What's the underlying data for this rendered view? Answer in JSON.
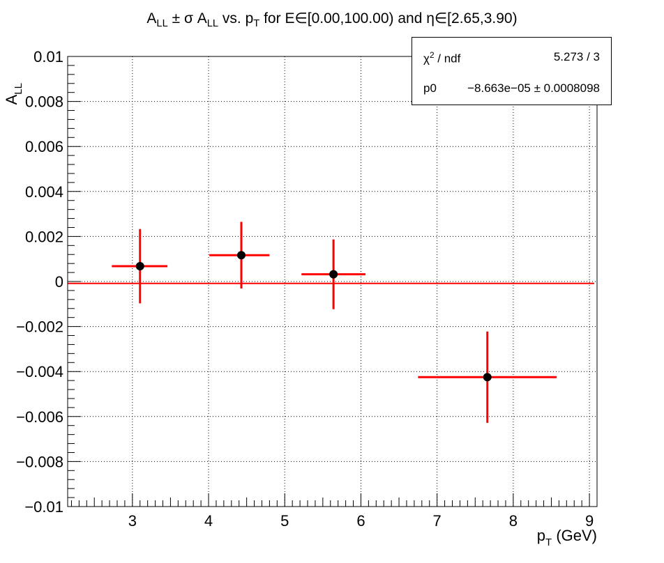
{
  "chart_data": {
    "type": "scatter",
    "title_parts": {
      "a": "A",
      "a_sub": "LL",
      "b": " ± σ A",
      "b_sub": "LL",
      "c": " vs. p",
      "c_sub": "T",
      "d": " for E∈[0.00,100.00) and η∈[2.65,3.90)"
    },
    "xlabel": "p_T (GeV)",
    "xlabel_parts": {
      "main": "p",
      "sub": "T",
      "rest": " (GeV)"
    },
    "ylabel": "A_LL",
    "ylabel_parts": {
      "main": "A",
      "sub": "LL"
    },
    "xlim": [
      2.15,
      9.1
    ],
    "ylim": [
      -0.01,
      0.01
    ],
    "x_ticks": [
      3,
      4,
      5,
      6,
      7,
      8,
      9
    ],
    "y_ticks": [
      -0.01,
      -0.008,
      -0.006,
      -0.004,
      -0.002,
      0,
      0.002,
      0.004,
      0.006,
      0.008,
      0.01
    ],
    "y_tick_labels": [
      "−0.01",
      "−0.008",
      "−0.006",
      "−0.004",
      "−0.002",
      "0",
      "0.002",
      "0.004",
      "0.006",
      "0.008",
      "0.01"
    ],
    "grid": true,
    "points": [
      {
        "x": 3.1,
        "y": 0.00068,
        "xerr_low": 0.37,
        "xerr_high": 0.36,
        "yerr": 0.00165
      },
      {
        "x": 4.43,
        "y": 0.00117,
        "xerr_low": 0.42,
        "xerr_high": 0.37,
        "yerr": 0.00148
      },
      {
        "x": 5.64,
        "y": 0.00032,
        "xerr_low": 0.42,
        "xerr_high": 0.42,
        "yerr": 0.00155
      },
      {
        "x": 7.66,
        "y": -0.00425,
        "xerr_low": 0.91,
        "xerr_high": 0.91,
        "yerr": 0.00203
      }
    ],
    "fit": {
      "type": "constant",
      "p0": -8.663e-05,
      "x_range": [
        2.15,
        9.1
      ]
    },
    "stats_box": {
      "chi2_label": "χ",
      "chi2_sup": "2",
      "chi2_rest": " / ndf",
      "chi2_value": "5.273 / 3",
      "p0_label": "p0",
      "p0_value": "−8.663e−05 ± 0.0008098"
    },
    "colors": {
      "errorbar": "#ff0000",
      "marker": "#000000",
      "fit": "#ff0000",
      "grid": "#000000"
    }
  }
}
